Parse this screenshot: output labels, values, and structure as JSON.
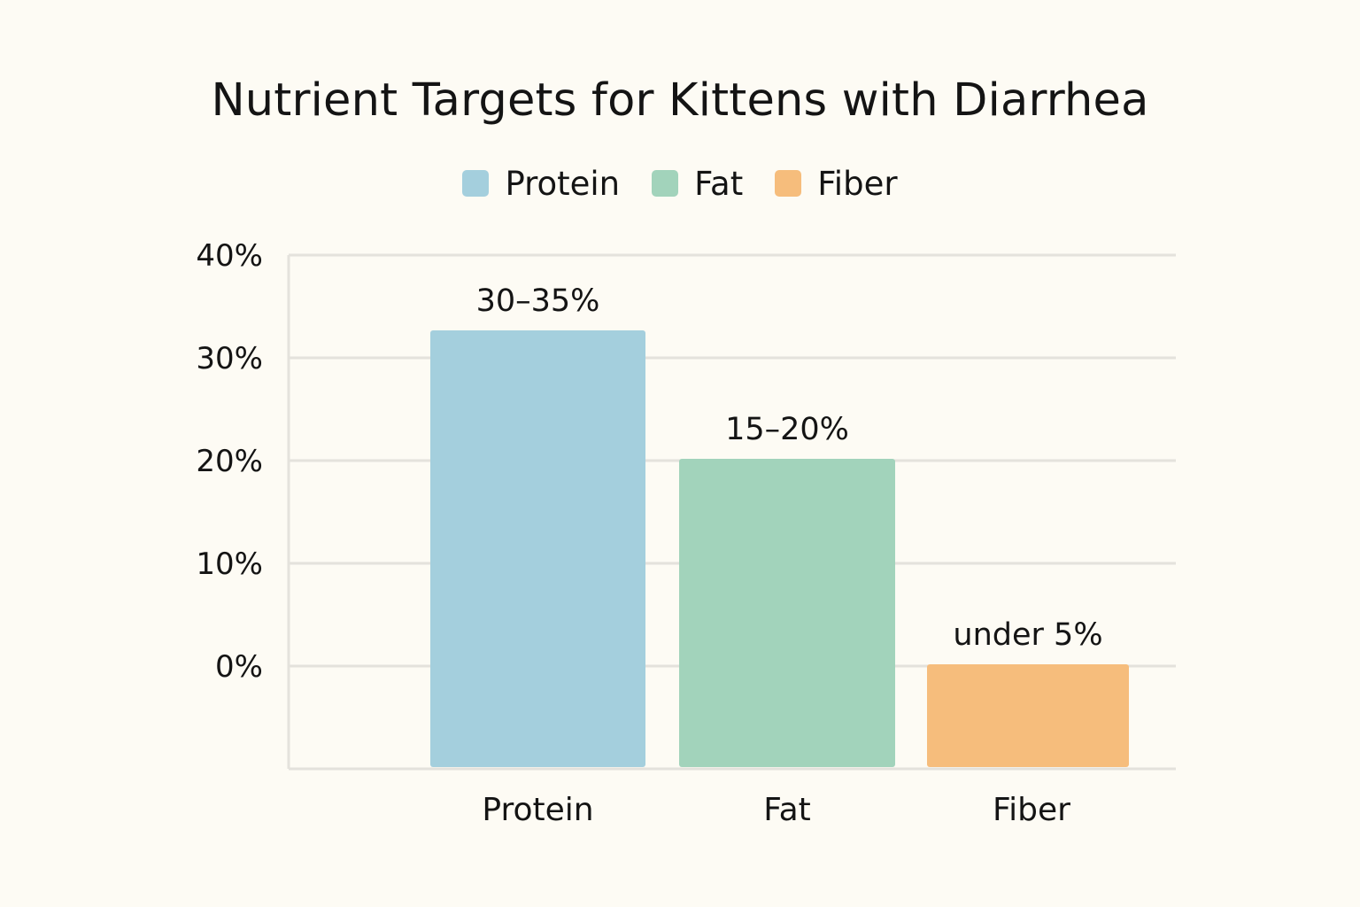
{
  "chart_data": {
    "type": "bar",
    "title": "Nutrient Targets for Kittens with Diarrhea",
    "categories": [
      "Protein",
      "Fat",
      "Fiber"
    ],
    "series": [
      {
        "name": "Protein",
        "values": [
          32.5,
          null,
          null
        ]
      },
      {
        "name": "Fat",
        "values": [
          null,
          20,
          null
        ]
      },
      {
        "name": "Fiber",
        "values": [
          null,
          null,
          0
        ]
      }
    ],
    "values": [
      32.5,
      20,
      0
    ],
    "data_labels": [
      "30–35%",
      "15–20%",
      "under 5%"
    ],
    "colors": [
      "#a4cfdd",
      "#a2d3bb",
      "#f6bd7c"
    ],
    "yticks": [
      "0%",
      "10%",
      "20%",
      "30%",
      "40%"
    ],
    "ytick_values": [
      0,
      10,
      20,
      30,
      40
    ],
    "ylim": [
      -10,
      40
    ],
    "xlabel": "",
    "ylabel": "",
    "grid": true,
    "legend_placement": "top-center"
  }
}
